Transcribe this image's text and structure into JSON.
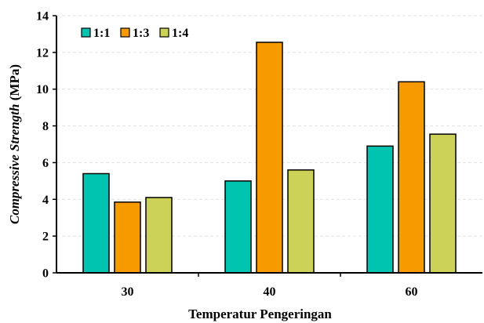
{
  "chart_data": {
    "type": "bar",
    "title": "",
    "xlabel": "Temperatur Pengeringan",
    "ylabel": {
      "italic_part": "Compressive Strength",
      "plain_part": " (MPa)"
    },
    "categories": [
      "30",
      "40",
      "60"
    ],
    "series": [
      {
        "name": "1:1",
        "values": [
          5.4,
          5.0,
          6.9
        ],
        "color": "#00C4B0"
      },
      {
        "name": "1:3",
        "values": [
          3.85,
          12.55,
          10.4
        ],
        "color": "#F79A00"
      },
      {
        "name": "1:4",
        "values": [
          4.1,
          5.6,
          7.55
        ],
        "color": "#CCD257"
      }
    ],
    "ylim": [
      0,
      14
    ],
    "yticks": [
      0,
      2,
      4,
      6,
      8,
      10,
      12,
      14
    ],
    "grid": true,
    "legend": "top-left"
  }
}
